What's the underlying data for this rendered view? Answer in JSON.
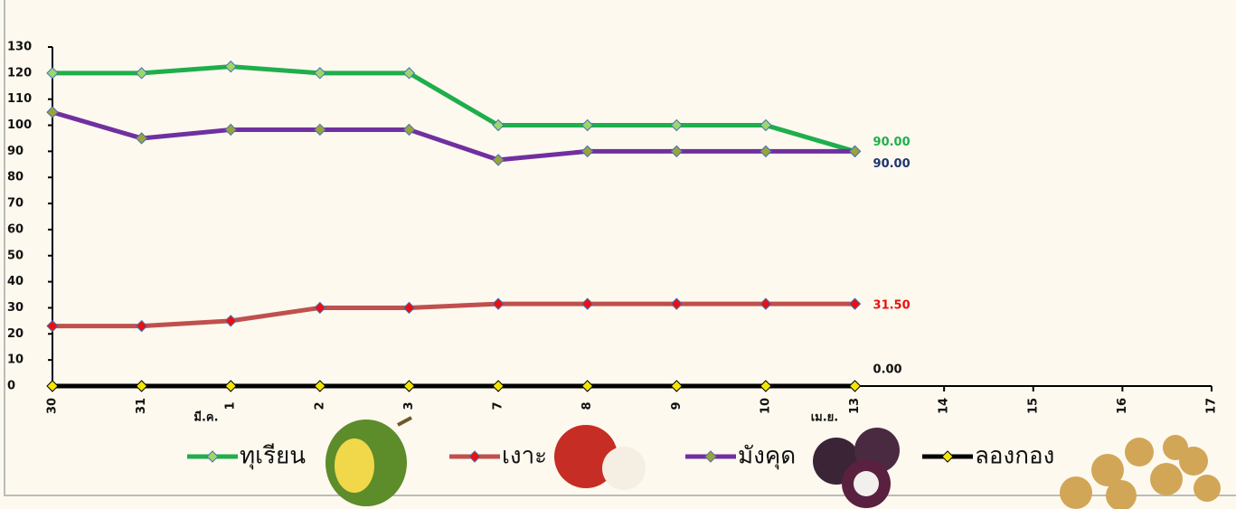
{
  "chart_data": {
    "type": "line",
    "categories": [
      "30",
      "31",
      "1",
      "2",
      "3",
      "7",
      "8",
      "9",
      "10",
      "13",
      "14",
      "15",
      "16",
      "17"
    ],
    "annotations": [
      "มี.ค.",
      "เม.ย."
    ],
    "ylim": [
      0,
      130
    ],
    "yticks": [
      0,
      10,
      20,
      30,
      40,
      50,
      60,
      70,
      80,
      90,
      100,
      110,
      120,
      130
    ],
    "series": [
      {
        "name": "ทุเรียน",
        "color": "#1fae4b",
        "marker_color": "#9ad86a",
        "value_label_color": "#1fae4b",
        "values": [
          120,
          120,
          122.5,
          120,
          120,
          100,
          100,
          100,
          100,
          90,
          null,
          null,
          null,
          null
        ],
        "value_labels": [
          null,
          null,
          null,
          null,
          null,
          null,
          null,
          null,
          null,
          "90.00",
          null,
          null,
          null,
          null
        ]
      },
      {
        "name": "เงาะ",
        "color": "#c0504d",
        "marker_color": "#e81010",
        "value_label_color": "#e81010",
        "values": [
          23,
          23,
          25,
          30,
          30,
          31.5,
          31.5,
          31.5,
          31.5,
          31.5,
          null,
          null,
          null,
          null
        ],
        "value_labels": [
          null,
          null,
          null,
          null,
          null,
          null,
          null,
          null,
          null,
          "31.50",
          null,
          null,
          null,
          null
        ]
      },
      {
        "name": "มังคุด",
        "color": "#7030a0",
        "marker_color": "#9aa33a",
        "value_label_color": "#1f3370",
        "values": [
          105,
          95,
          98.3,
          98.3,
          98.3,
          86.7,
          90,
          90,
          90,
          90,
          null,
          null,
          null,
          null
        ],
        "value_labels": [
          null,
          null,
          null,
          null,
          null,
          null,
          null,
          null,
          null,
          "90.00",
          null,
          null,
          null,
          null
        ]
      },
      {
        "name": "ลองกอง",
        "color": "#000000",
        "marker_color": "#f5e600",
        "value_label_color": "#111111",
        "values": [
          0,
          0,
          0,
          0,
          0,
          0,
          0,
          0,
          0,
          0,
          null,
          null,
          null,
          null
        ],
        "value_labels": [
          null,
          null,
          null,
          null,
          null,
          null,
          null,
          null,
          null,
          "0.00",
          null,
          null,
          null,
          null
        ]
      }
    ]
  }
}
